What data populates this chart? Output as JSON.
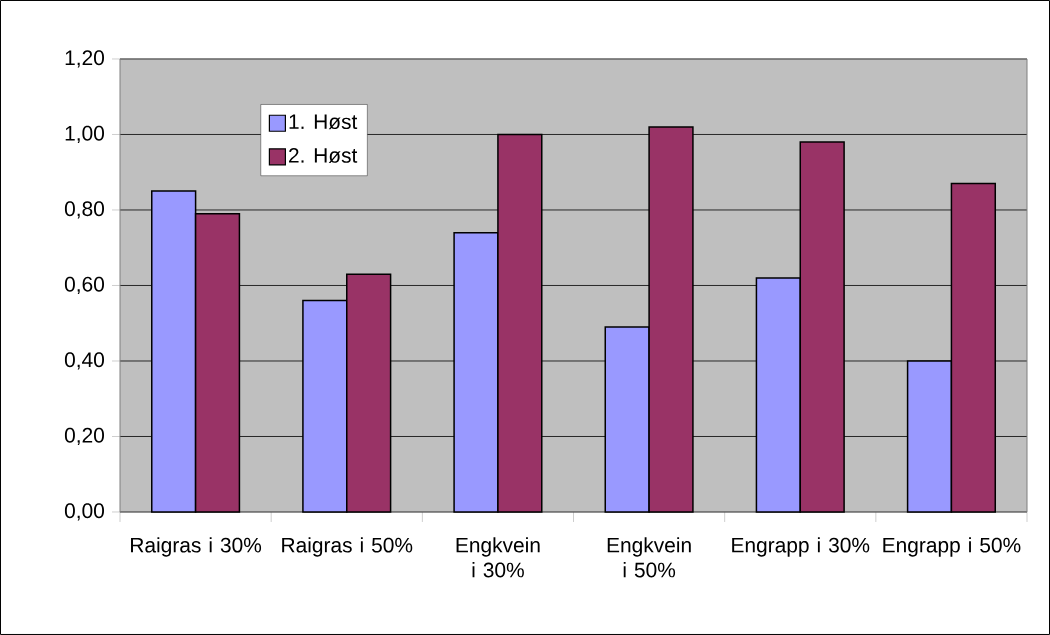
{
  "chart_data": {
    "type": "bar",
    "categories": [
      "Raigras i 30%",
      "Raigras i 50%",
      "Engkvein i 30%",
      "Engkvein i 50%",
      "Engrapp i 30%",
      "Engrapp i 50%"
    ],
    "series": [
      {
        "name": "1. Høst",
        "color": "#9999ff",
        "values": [
          0.85,
          0.56,
          0.74,
          0.49,
          0.62,
          0.4
        ]
      },
      {
        "name": "2. Høst",
        "color": "#993366",
        "values": [
          0.79,
          0.63,
          1.0,
          1.02,
          0.98,
          0.87
        ]
      }
    ],
    "ylim": [
      0,
      1.2
    ],
    "yticks": [
      {
        "value": 0,
        "label": "0,00"
      },
      {
        "value": 0.2,
        "label": "0,20"
      },
      {
        "value": 0.4,
        "label": "0,40"
      },
      {
        "value": 0.6,
        "label": "0,60"
      },
      {
        "value": 0.8,
        "label": "0,80"
      },
      {
        "value": 1.0,
        "label": "1,00"
      },
      {
        "value": 1.2,
        "label": "1,20"
      }
    ],
    "grid": "y",
    "legend": "top left"
  }
}
